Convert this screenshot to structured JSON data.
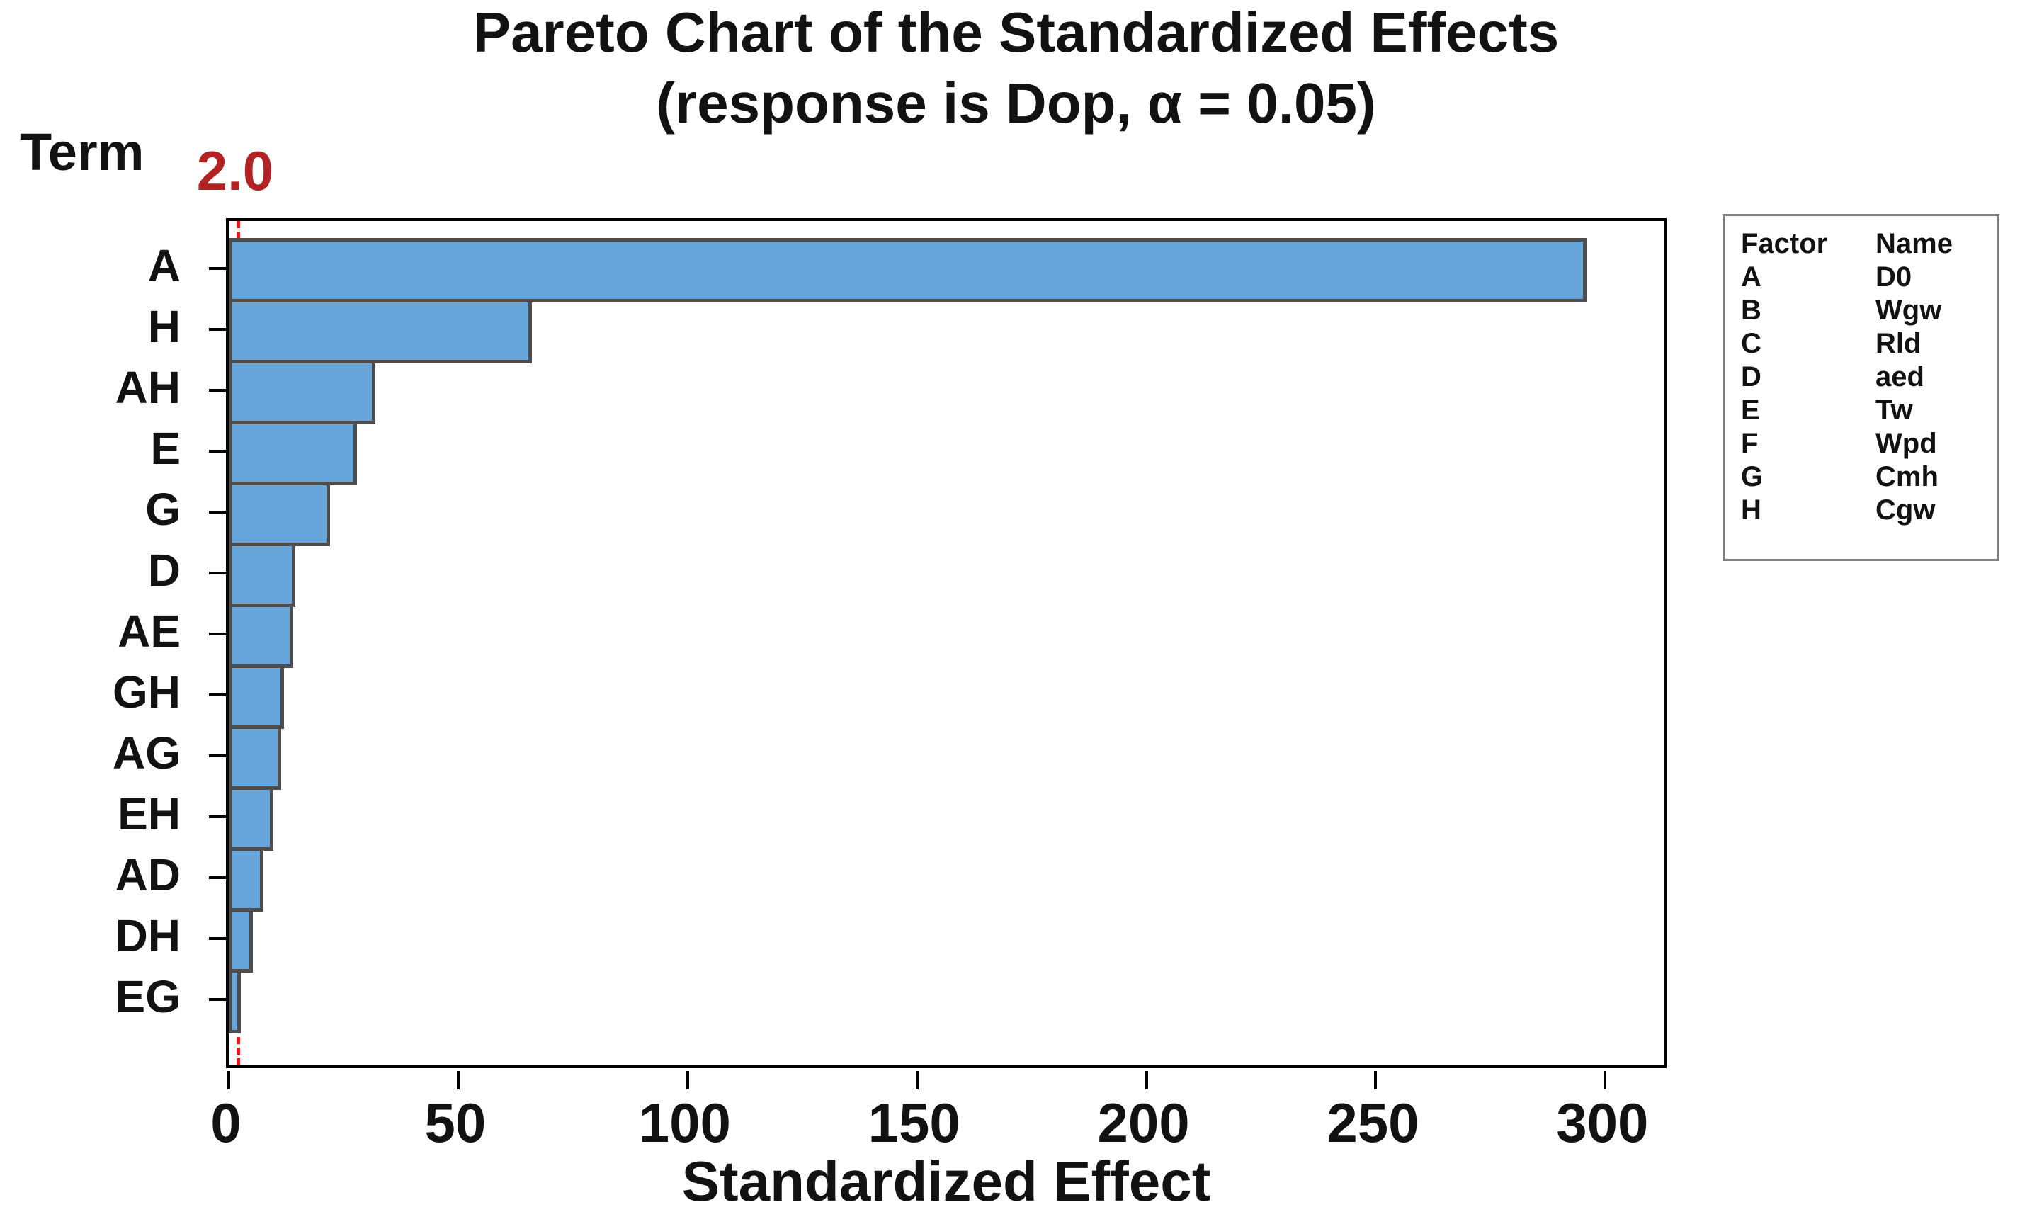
{
  "title": "Pareto Chart of the Standardized Effects",
  "subtitle": "(response is Dop, α = 0.05)",
  "y_axis_header": "Term",
  "reference_line": {
    "value": 2.0,
    "label": "2.0"
  },
  "legend": {
    "headers": [
      "Factor",
      "Name"
    ],
    "rows": [
      [
        "A",
        "D0"
      ],
      [
        "B",
        "Wgw"
      ],
      [
        "C",
        "Rld"
      ],
      [
        "D",
        "aed"
      ],
      [
        "E",
        "Tw"
      ],
      [
        "F",
        "Wpd"
      ],
      [
        "G",
        "Cmh"
      ],
      [
        "H",
        "Cgw"
      ]
    ]
  },
  "colors": {
    "bar_fill": "#67a6da",
    "bar_border": "#4d4d4d",
    "reference_line": "#ee1111",
    "reference_label": "#b22222",
    "axis": "#000000",
    "legend_border": "#7f7f7f"
  },
  "chart_data": {
    "type": "bar",
    "orientation": "horizontal",
    "title": "Pareto Chart of the Standardized Effects",
    "subtitle": "(response is Dop, α = 0.05)",
    "xlabel": "Standardized Effect",
    "ylabel": "Term",
    "categories": [
      "A",
      "H",
      "AH",
      "E",
      "G",
      "D",
      "AE",
      "GH",
      "AG",
      "EH",
      "AD",
      "DH",
      "EG"
    ],
    "values": [
      296,
      66,
      32,
      28,
      22,
      14.5,
      14,
      12,
      11.5,
      9.7,
      7.6,
      5.3,
      2.6
    ],
    "xticks": [
      0,
      50,
      100,
      150,
      200,
      250,
      300
    ],
    "xlim": [
      0,
      314
    ],
    "reference_value": 2.0,
    "grid": false,
    "legend_position": "right"
  }
}
